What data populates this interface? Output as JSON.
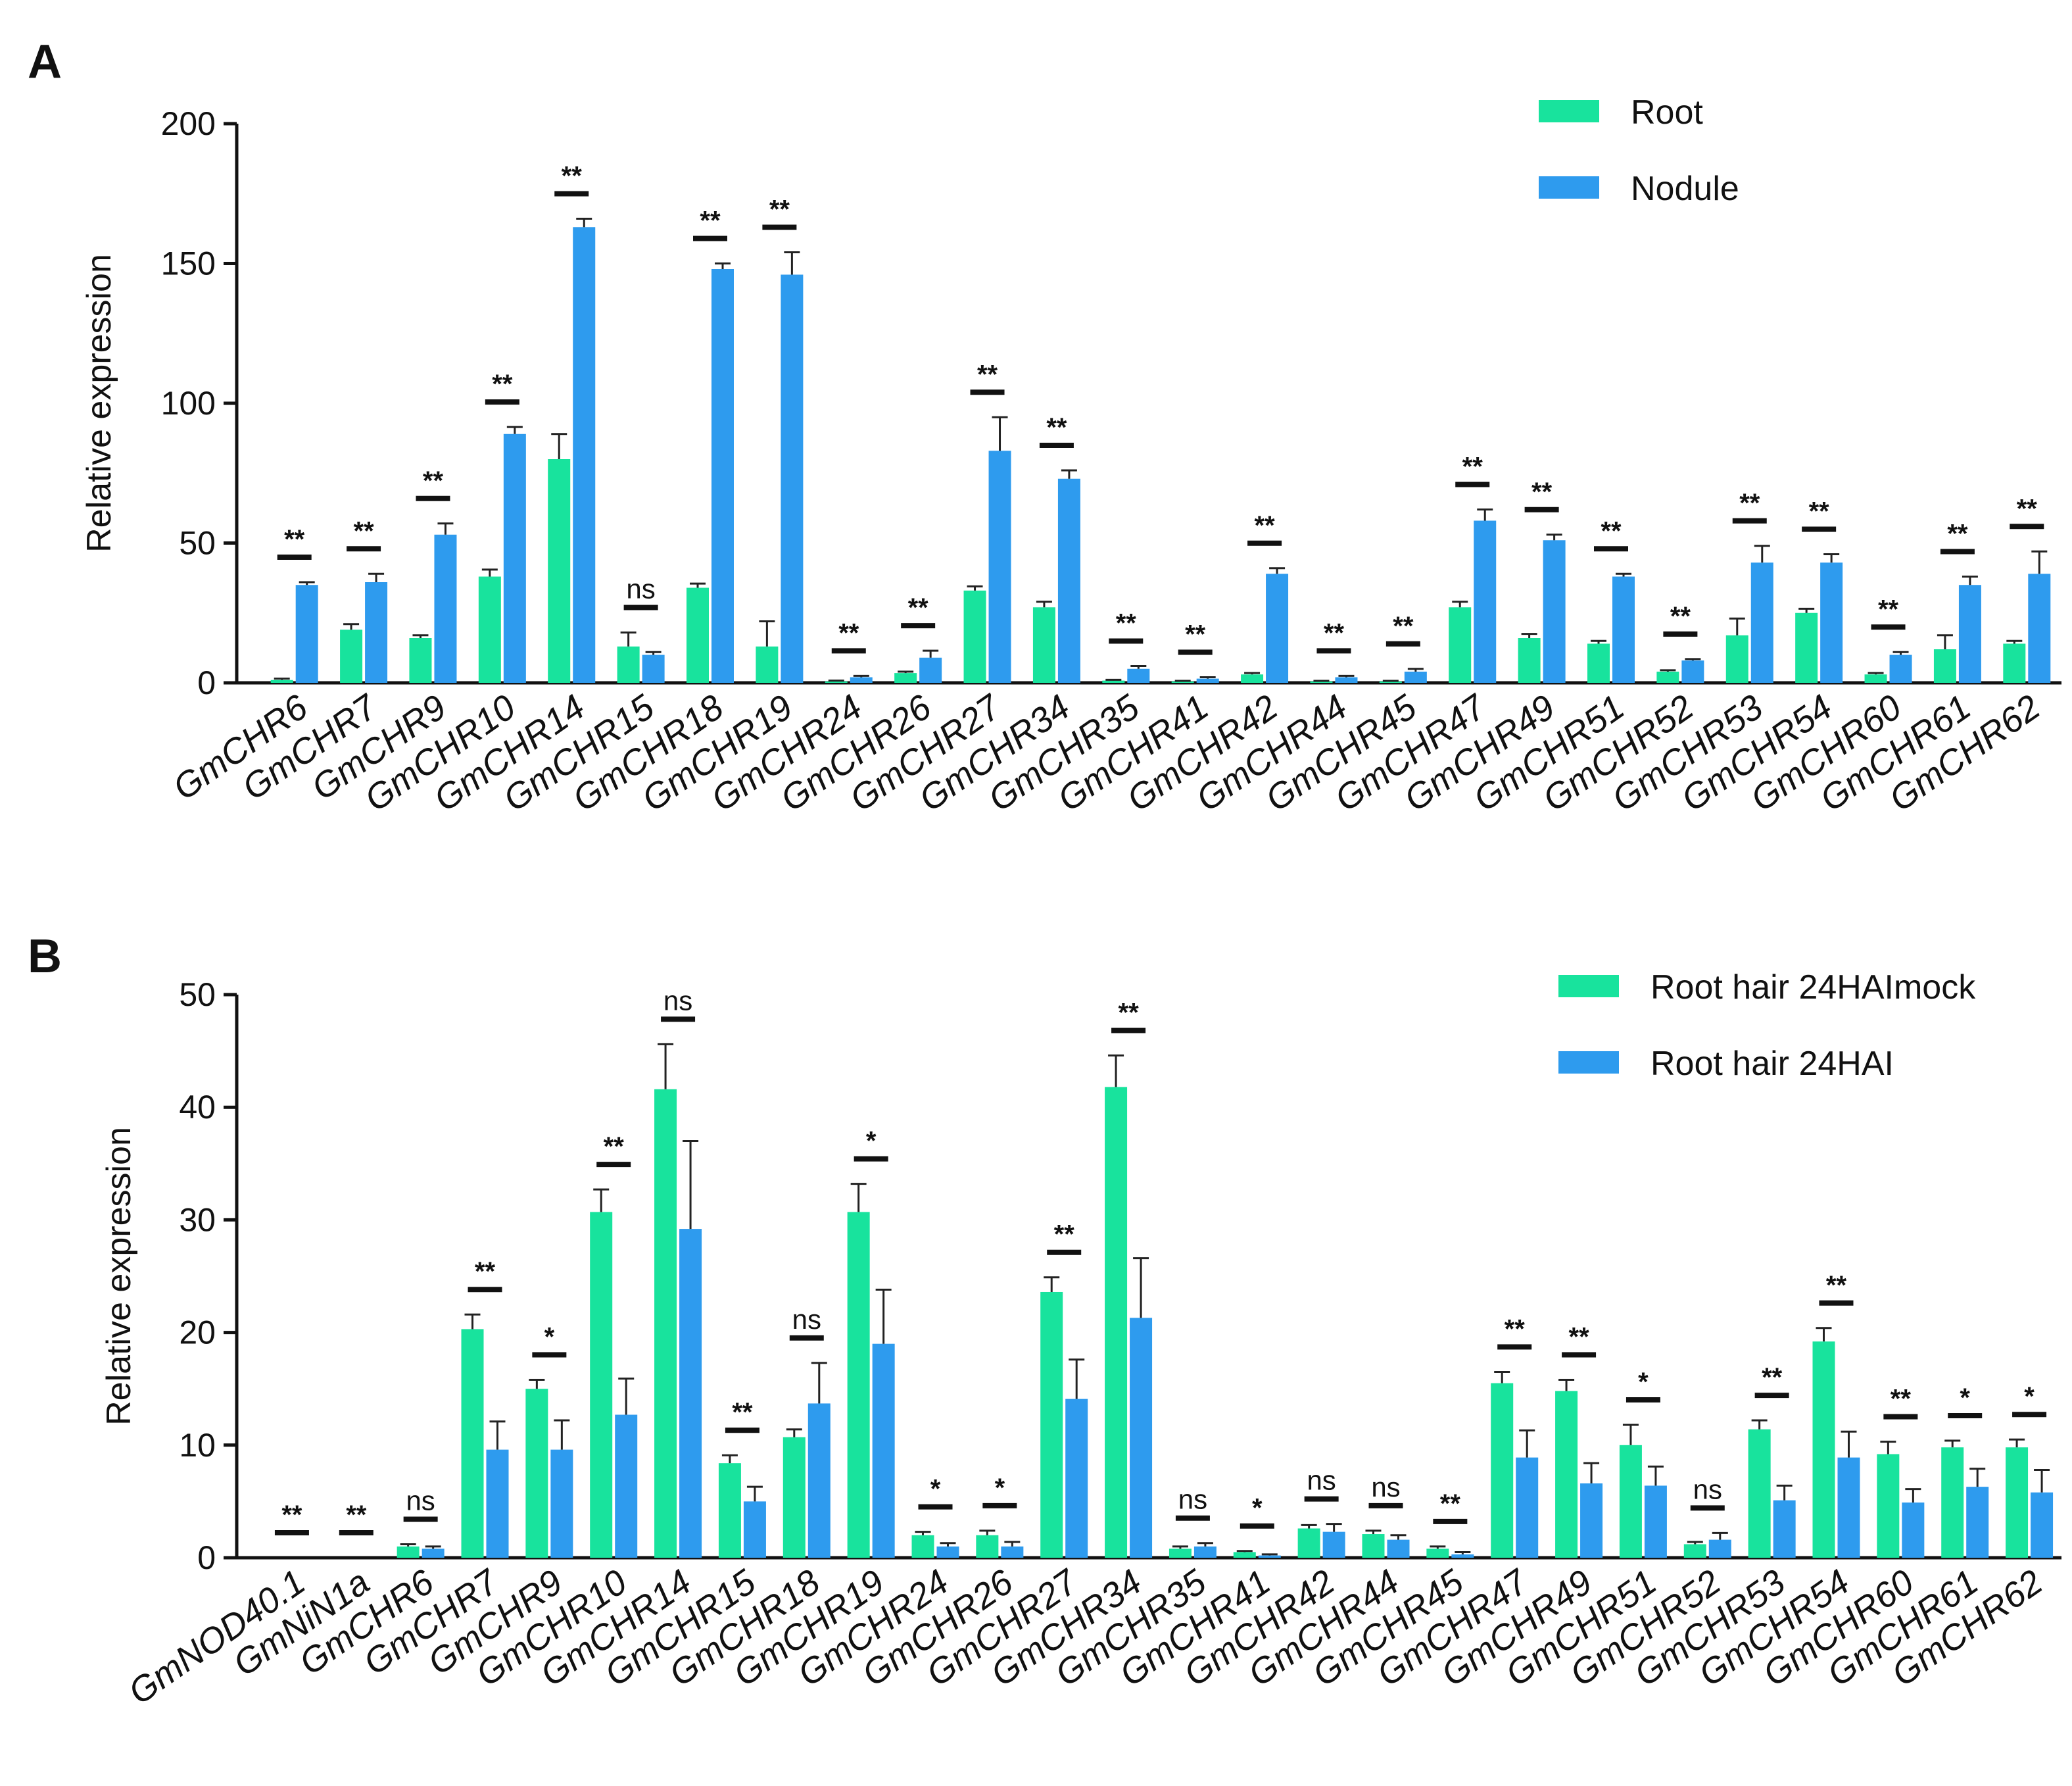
{
  "colors": {
    "green": "#18E39D",
    "blue": "#2E9BEE",
    "text": "#111111"
  },
  "chart_data": [
    {
      "panel": "A",
      "type": "bar",
      "ylabel": "Relative expression",
      "ylim": [
        0,
        200
      ],
      "yticks": [
        0,
        50,
        100,
        150,
        200
      ],
      "categories": [
        "GmCHR6",
        "GmCHR7",
        "GmCHR9",
        "GmCHR10",
        "GmCHR14",
        "GmCHR15",
        "GmCHR18",
        "GmCHR19",
        "GmCHR24",
        "GmCHR26",
        "GmCHR27",
        "GmCHR34",
        "GmCHR35",
        "GmCHR41",
        "GmCHR42",
        "GmCHR44",
        "GmCHR45",
        "GmCHR47",
        "GmCHR49",
        "GmCHR51",
        "GmCHR52",
        "GmCHR53",
        "GmCHR54",
        "GmCHR60",
        "GmCHR61",
        "GmCHR62"
      ],
      "series": [
        {
          "name": "Root",
          "color": "#18E39D",
          "values": [
            1,
            19,
            16,
            38,
            80,
            13,
            34,
            13,
            0.5,
            3.5,
            33,
            27,
            0.8,
            0.5,
            3,
            0.5,
            0.5,
            27,
            16,
            14,
            4,
            17,
            25,
            3,
            12,
            14
          ],
          "errors": [
            0.5,
            2,
            1,
            2.5,
            9,
            5,
            1.5,
            9,
            0.3,
            0.5,
            1.5,
            2,
            0.3,
            0.2,
            0.5,
            0.2,
            0.2,
            2,
            1.5,
            1,
            0.5,
            6,
            1.5,
            0.5,
            5,
            1
          ]
        },
        {
          "name": "Nodule",
          "color": "#2E9BEE",
          "values": [
            35,
            36,
            53,
            89,
            163,
            10,
            148,
            146,
            2,
            9,
            83,
            73,
            5,
            1.5,
            39,
            2,
            4,
            58,
            51,
            38,
            8,
            43,
            43,
            10,
            35,
            39
          ],
          "errors": [
            1,
            3,
            4,
            2.5,
            3,
            1,
            2,
            8,
            0.5,
            2.5,
            12,
            3,
            1,
            0.5,
            2,
            0.5,
            1,
            4,
            2,
            1,
            0.5,
            6,
            3,
            1,
            3,
            8
          ]
        }
      ],
      "significance": [
        "**",
        "**",
        "**",
        "**",
        "**",
        "ns",
        "**",
        "**",
        "**",
        "**",
        "**",
        "**",
        "**",
        "**",
        "**",
        "**",
        "**",
        "**",
        "**",
        "**",
        "**",
        "**",
        "**",
        "**",
        "**",
        "**"
      ],
      "legend_position": "top-right"
    },
    {
      "panel": "B",
      "type": "bar",
      "ylabel": "Relative expression",
      "ylim": [
        0,
        50
      ],
      "yticks": [
        0,
        10,
        20,
        30,
        40,
        50
      ],
      "categories": [
        "GmNOD40.1",
        "GmNiN1a",
        "GmCHR6",
        "GmCHR7",
        "GmCHR9",
        "GmCHR10",
        "GmCHR14",
        "GmCHR15",
        "GmCHR18",
        "GmCHR19",
        "GmCHR24",
        "GmCHR26",
        "GmCHR27",
        "GmCHR34",
        "GmCHR35",
        "GmCHR41",
        "GmCHR42",
        "GmCHR44",
        "GmCHR45",
        "GmCHR47",
        "GmCHR49",
        "GmCHR51",
        "GmCHR52",
        "GmCHR53",
        "GmCHR54",
        "GmCHR60",
        "GmCHR61",
        "GmCHR62"
      ],
      "series": [
        {
          "name": "Root hair 24HAImock",
          "color": "#18E39D",
          "values": [
            0,
            0,
            1,
            20.3,
            15,
            30.7,
            41.6,
            8.4,
            10.7,
            30.7,
            2,
            2,
            23.6,
            41.8,
            0.8,
            0.5,
            2.6,
            2.1,
            0.8,
            15.5,
            14.8,
            10,
            1.2,
            11.4,
            19.2,
            9.2,
            9.8,
            9.8
          ],
          "errors": [
            0,
            0,
            0.2,
            1.3,
            0.8,
            2,
            4,
            0.7,
            0.7,
            2.5,
            0.3,
            0.4,
            1.3,
            2.8,
            0.2,
            0.1,
            0.3,
            0.3,
            0.2,
            1,
            1,
            1.8,
            0.2,
            0.8,
            1.2,
            1.1,
            0.6,
            0.7
          ]
        },
        {
          "name": "Root hair 24HAI",
          "color": "#2E9BEE",
          "values": [
            0,
            0,
            0.8,
            9.6,
            9.6,
            12.7,
            29.2,
            5,
            13.7,
            19,
            1,
            1,
            14.1,
            21.3,
            1,
            0.2,
            2.3,
            1.6,
            0.3,
            8.9,
            6.6,
            6.4,
            1.6,
            5.1,
            8.9,
            4.9,
            6.3,
            5.8
          ],
          "errors": [
            0,
            0,
            0.2,
            2.5,
            2.6,
            3.2,
            7.8,
            1.3,
            3.6,
            4.8,
            0.3,
            0.4,
            3.5,
            5.3,
            0.3,
            0.1,
            0.7,
            0.4,
            0.2,
            2.4,
            1.8,
            1.7,
            0.6,
            1.3,
            2.3,
            1.2,
            1.6,
            2
          ]
        }
      ],
      "significance": [
        "**",
        "**",
        "ns",
        "**",
        "*",
        "**",
        "ns",
        "**",
        "ns",
        "*",
        "*",
        "*",
        "**",
        "**",
        "ns",
        "*",
        "ns",
        "ns",
        "**",
        "**",
        "**",
        "*",
        "ns",
        "**",
        "**",
        "**",
        "*",
        "*"
      ],
      "legend_position": "top-right"
    }
  ]
}
